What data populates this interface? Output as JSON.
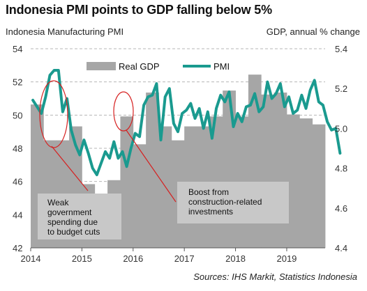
{
  "title": "Indonesia PMI points to GDP falling below 5%",
  "left_axis_title": "Indonesia Manufacturing PMI",
  "right_axis_title": "GDP, annual % change",
  "source": "Sources: IHS Markit, Statistics Indonesia",
  "chart_data": {
    "type": "bar+line",
    "x_tick_labels": [
      "2014",
      "2015",
      "2016",
      "2017",
      "2018",
      "2019"
    ],
    "x_range": [
      2014.0,
      2019.75
    ],
    "y_left": {
      "range": [
        42,
        54
      ],
      "ticks": [
        42,
        44,
        46,
        48,
        50,
        52,
        54
      ]
    },
    "y_right": {
      "range": [
        4.4,
        5.4
      ],
      "tick_labels": [
        "4.4",
        "4.6",
        "4.8",
        "5.0",
        "5.2",
        "5.4"
      ]
    },
    "grid": "horizontal dashed",
    "legend": {
      "position": "top-center",
      "entries": [
        "Real GDP",
        "PMI"
      ]
    },
    "colors": {
      "bars": "#a6a6a6",
      "line": "#1a9a8f",
      "annotation": "#d62020",
      "note_box": "#c8c8c8"
    },
    "gdp_series": {
      "name": "Real GDP",
      "axis": "right",
      "quarters": [
        "2014-Q1",
        "2014-Q2",
        "2014-Q3",
        "2014-Q4",
        "2015-Q1",
        "2015-Q2",
        "2015-Q3",
        "2015-Q4",
        "2016-Q1",
        "2016-Q2",
        "2016-Q3",
        "2016-Q4",
        "2017-Q1",
        "2017-Q2",
        "2017-Q3",
        "2017-Q4",
        "2018-Q1",
        "2018-Q2",
        "2018-Q3",
        "2018-Q4",
        "2019-Q1",
        "2019-Q2",
        "2019-Q3"
      ],
      "values": [
        5.12,
        4.94,
        4.94,
        5.01,
        4.72,
        4.67,
        4.74,
        5.06,
        4.92,
        5.18,
        5.01,
        4.94,
        5.01,
        5.01,
        5.06,
        5.19,
        5.06,
        5.27,
        5.17,
        5.18,
        5.07,
        5.05,
        5.02
      ]
    },
    "pmi_series": {
      "name": "PMI",
      "axis": "left",
      "start": "2014-01",
      "values": [
        50.9,
        50.5,
        50.1,
        51.1,
        52.4,
        52.7,
        52.7,
        50.2,
        51.0,
        49.1,
        48.2,
        47.6,
        48.5,
        47.7,
        46.8,
        46.4,
        47.1,
        47.8,
        47.4,
        48.4,
        47.4,
        47.8,
        46.9,
        48.0,
        48.9,
        48.7,
        50.6,
        51.1,
        51.2,
        51.9,
        48.5,
        51.1,
        51.6,
        49.5,
        49.0,
        50.1,
        50.3,
        50.7,
        49.8,
        50.4,
        49.2,
        50.2,
        48.6,
        50.4,
        51.2,
        50.8,
        51.4,
        49.3,
        50.1,
        49.6,
        50.5,
        50.6,
        51.3,
        50.2,
        50.5,
        52.0,
        51.0,
        51.3,
        51.9,
        50.5,
        51.1,
        50.1,
        50.3,
        51.2,
        50.4,
        51.5,
        52.1,
        50.8,
        50.6,
        49.6,
        49.1,
        49.2,
        47.7
      ]
    },
    "annotations": [
      {
        "text": [
          "Weak",
          "government",
          "spending due",
          "to budget cuts"
        ]
      },
      {
        "text": [
          "Boost from",
          "construction-related",
          "investments"
        ]
      }
    ]
  }
}
